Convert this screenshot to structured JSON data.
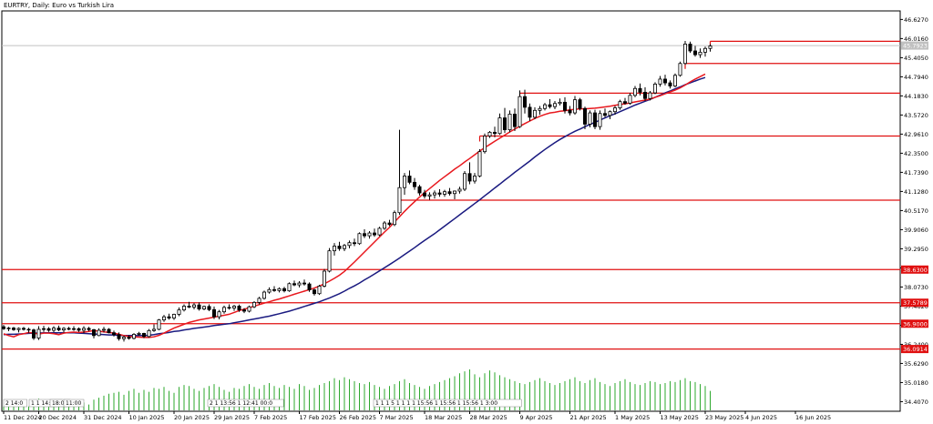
{
  "chart_data": {
    "type": "candlestick",
    "title": "EURTRY, Daily:  Euro vs Turkish Lira",
    "symbol": "EURTRY",
    "timeframe": "Daily",
    "description": "Euro vs Turkish Lira",
    "current_price_label": "45.7923",
    "ylim": [
      34.1,
      46.9
    ],
    "y_ticks": [
      "46.6270",
      "46.0160",
      "45.4050",
      "44.7940",
      "44.1830",
      "43.5720",
      "42.9610",
      "42.3500",
      "41.7390",
      "41.1280",
      "40.5170",
      "39.9060",
      "39.2950",
      "38.6840",
      "38.0730",
      "37.4620",
      "36.8510",
      "36.2400",
      "35.6290",
      "35.0180",
      "34.4070"
    ],
    "x_ticks": [
      "11 Dec 2024",
      "20 Dec 2024",
      "31 Dec 2024",
      "10 Jan 2025",
      "20 Jan 2025",
      "29 Jan 2025",
      "7 Feb 2025",
      "17 Feb 2025",
      "26 Feb 2025",
      "7 Mar 2025",
      "18 Mar 2025",
      "28 Mar 2025",
      "9 Apr 2025",
      "21 Apr 2025",
      "1 May 2025",
      "13 May 2025",
      "23 May 2025",
      "4 Jun 2025",
      "16 Jun 2025"
    ],
    "horizontal_levels": [
      {
        "price": 45.93,
        "label": "",
        "start_bar": 141
      },
      {
        "price": 45.22,
        "label": "",
        "start_bar": 136
      },
      {
        "price": 44.27,
        "label": "",
        "start_bar": 103
      },
      {
        "price": 42.9,
        "label": "",
        "start_bar": 95
      },
      {
        "price": 40.85,
        "label": "",
        "start_bar": 79
      },
      {
        "price": 38.63,
        "label": "38.6300"
      },
      {
        "price": 37.57,
        "label": "37.5789"
      },
      {
        "price": 36.9,
        "label": "36.9000"
      },
      {
        "price": 36.09,
        "label": "36.0914"
      }
    ],
    "ma_fast": {
      "color": "#e8181e",
      "values": [
        36.58,
        36.52,
        36.48,
        36.55,
        36.58,
        36.62,
        36.6,
        36.57,
        36.6,
        36.6,
        36.58,
        36.55,
        36.6,
        36.62,
        36.63,
        36.62,
        36.63,
        36.65,
        36.68,
        36.66,
        36.64,
        36.62,
        36.6,
        36.56,
        36.52,
        36.49,
        36.48,
        36.47,
        36.46,
        36.46,
        36.48,
        36.53,
        36.6,
        36.68,
        36.76,
        36.82,
        36.88,
        36.94,
        36.98,
        37.02,
        37.05,
        37.08,
        37.11,
        37.14,
        37.17,
        37.2,
        37.26,
        37.32,
        37.36,
        37.41,
        37.46,
        37.51,
        37.56,
        37.6,
        37.65,
        37.69,
        37.74,
        37.79,
        37.84,
        37.89,
        37.94,
        37.99,
        38.04,
        38.1,
        38.18,
        38.26,
        38.35,
        38.45,
        38.57,
        38.72,
        38.87,
        39.03,
        39.19,
        39.35,
        39.51,
        39.67,
        39.83,
        39.98,
        40.15,
        40.32,
        40.49,
        40.65,
        40.8,
        40.95,
        41.09,
        41.22,
        41.35,
        41.48,
        41.6,
        41.72,
        41.84,
        41.95,
        42.07,
        42.18,
        42.3,
        42.42,
        42.53,
        42.63,
        42.73,
        42.83,
        42.93,
        43.03,
        43.12,
        43.21,
        43.3,
        43.38,
        43.46,
        43.53,
        43.59,
        43.64,
        43.66,
        43.69,
        43.71,
        43.74,
        43.75,
        43.77,
        43.77,
        43.78,
        43.79,
        43.81,
        43.83,
        43.85,
        43.88,
        43.91,
        43.93,
        43.96,
        43.99,
        44.02,
        44.05,
        44.08,
        44.14,
        44.19,
        44.25,
        44.31,
        44.37,
        44.44,
        44.53,
        44.63,
        44.72,
        44.8,
        44.88
      ]
    },
    "ma_slow": {
      "color": "#1a1a80",
      "values": [
        36.55,
        36.56,
        36.56,
        36.57,
        36.58,
        36.59,
        36.6,
        36.6,
        36.61,
        36.61,
        36.61,
        36.61,
        36.61,
        36.61,
        36.61,
        36.6,
        36.59,
        36.58,
        36.57,
        36.56,
        36.55,
        36.54,
        36.54,
        36.53,
        36.52,
        36.52,
        36.52,
        36.52,
        36.52,
        36.53,
        36.55,
        36.58,
        36.6,
        36.62,
        36.65,
        36.67,
        36.7,
        36.72,
        36.75,
        36.77,
        36.79,
        36.81,
        36.84,
        36.86,
        36.88,
        36.9,
        36.93,
        36.96,
        36.99,
        37.02,
        37.05,
        37.08,
        37.11,
        37.14,
        37.18,
        37.22,
        37.26,
        37.3,
        37.35,
        37.4,
        37.45,
        37.5,
        37.55,
        37.6,
        37.66,
        37.72,
        37.79,
        37.86,
        37.94,
        38.03,
        38.11,
        38.2,
        38.3,
        38.39,
        38.49,
        38.59,
        38.69,
        38.79,
        38.89,
        39.0,
        39.11,
        39.22,
        39.33,
        39.45,
        39.56,
        39.67,
        39.78,
        39.9,
        40.02,
        40.14,
        40.26,
        40.38,
        40.5,
        40.62,
        40.74,
        40.86,
        40.99,
        41.11,
        41.24,
        41.36,
        41.49,
        41.61,
        41.74,
        41.86,
        41.98,
        42.1,
        42.23,
        42.35,
        42.47,
        42.58,
        42.69,
        42.79,
        42.88,
        42.97,
        43.05,
        43.12,
        43.2,
        43.27,
        43.34,
        43.41,
        43.48,
        43.55,
        43.61,
        43.68,
        43.75,
        43.82,
        43.89,
        43.95,
        44.01,
        44.07,
        44.14,
        44.21,
        44.28,
        44.34,
        44.41,
        44.47,
        44.54,
        44.6,
        44.66,
        44.72,
        44.77
      ]
    },
    "candles": [
      [
        36.8,
        36.86,
        36.7,
        36.74
      ],
      [
        36.74,
        36.8,
        36.66,
        36.76
      ],
      [
        36.76,
        36.8,
        36.67,
        36.71
      ],
      [
        36.71,
        36.78,
        36.62,
        36.75
      ],
      [
        36.75,
        36.8,
        36.68,
        36.72
      ],
      [
        36.72,
        36.77,
        36.61,
        36.7
      ],
      [
        36.7,
        36.74,
        36.38,
        36.44
      ],
      [
        36.44,
        36.82,
        36.38,
        36.72
      ],
      [
        36.72,
        36.83,
        36.64,
        36.74
      ],
      [
        36.74,
        36.79,
        36.64,
        36.69
      ],
      [
        36.69,
        36.82,
        36.63,
        36.76
      ],
      [
        36.76,
        36.84,
        36.66,
        36.7
      ],
      [
        36.7,
        36.79,
        36.62,
        36.75
      ],
      [
        36.75,
        36.8,
        36.69,
        36.72
      ],
      [
        36.72,
        36.82,
        36.67,
        36.74
      ],
      [
        36.74,
        36.78,
        36.64,
        36.69
      ],
      [
        36.69,
        36.82,
        36.6,
        36.75
      ],
      [
        36.75,
        36.8,
        36.66,
        36.71
      ],
      [
        36.71,
        36.73,
        36.43,
        36.52
      ],
      [
        36.52,
        36.75,
        36.5,
        36.69
      ],
      [
        36.69,
        36.8,
        36.62,
        36.72
      ],
      [
        36.72,
        36.76,
        36.59,
        36.61
      ],
      [
        36.61,
        36.68,
        36.49,
        36.55
      ],
      [
        36.55,
        36.62,
        36.36,
        36.42
      ],
      [
        36.42,
        36.52,
        36.33,
        36.47
      ],
      [
        36.47,
        36.53,
        36.39,
        36.43
      ],
      [
        36.43,
        36.6,
        36.4,
        36.56
      ],
      [
        36.56,
        36.64,
        36.51,
        36.59
      ],
      [
        36.59,
        36.61,
        36.44,
        36.49
      ],
      [
        36.49,
        36.73,
        36.46,
        36.68
      ],
      [
        36.68,
        36.88,
        36.64,
        36.72
      ],
      [
        36.72,
        37.05,
        36.69,
        37.02
      ],
      [
        37.02,
        37.18,
        36.96,
        37.12
      ],
      [
        37.12,
        37.22,
        37.03,
        37.08
      ],
      [
        37.08,
        37.22,
        37.02,
        37.2
      ],
      [
        37.2,
        37.42,
        37.14,
        37.34
      ],
      [
        37.34,
        37.52,
        37.29,
        37.46
      ],
      [
        37.46,
        37.6,
        37.4,
        37.43
      ],
      [
        37.43,
        37.56,
        37.36,
        37.5
      ],
      [
        37.5,
        37.58,
        37.32,
        37.37
      ],
      [
        37.37,
        37.48,
        37.33,
        37.45
      ],
      [
        37.45,
        37.52,
        37.3,
        37.35
      ],
      [
        37.35,
        37.45,
        37.05,
        37.12
      ],
      [
        37.12,
        37.34,
        37.04,
        37.28
      ],
      [
        37.28,
        37.48,
        37.22,
        37.42
      ],
      [
        37.42,
        37.52,
        37.35,
        37.4
      ],
      [
        37.4,
        37.5,
        37.31,
        37.46
      ],
      [
        37.46,
        37.51,
        37.28,
        37.34
      ],
      [
        37.34,
        37.4,
        37.24,
        37.3
      ],
      [
        37.3,
        37.48,
        37.26,
        37.44
      ],
      [
        37.44,
        37.62,
        37.4,
        37.58
      ],
      [
        37.58,
        37.76,
        37.52,
        37.71
      ],
      [
        37.71,
        37.96,
        37.67,
        37.91
      ],
      [
        37.91,
        38.06,
        37.86,
        37.99
      ],
      [
        37.99,
        38.1,
        37.92,
        37.96
      ],
      [
        37.96,
        38.06,
        37.9,
        38.02
      ],
      [
        38.02,
        38.08,
        37.9,
        37.95
      ],
      [
        37.95,
        38.22,
        37.92,
        38.18
      ],
      [
        38.18,
        38.28,
        38.1,
        38.14
      ],
      [
        38.14,
        38.26,
        38.06,
        38.2
      ],
      [
        38.2,
        38.31,
        38.12,
        38.17
      ],
      [
        38.17,
        38.22,
        37.92,
        37.98
      ],
      [
        37.98,
        38.02,
        37.8,
        37.86
      ],
      [
        37.86,
        38.14,
        37.82,
        38.1
      ],
      [
        38.1,
        38.65,
        38.06,
        38.58
      ],
      [
        38.58,
        39.32,
        38.54,
        39.23
      ],
      [
        39.23,
        39.48,
        39.08,
        39.38
      ],
      [
        39.38,
        39.52,
        39.23,
        39.3
      ],
      [
        39.3,
        39.45,
        39.22,
        39.4
      ],
      [
        39.4,
        39.56,
        39.31,
        39.49
      ],
      [
        39.49,
        39.62,
        39.38,
        39.46
      ],
      [
        39.46,
        39.82,
        39.42,
        39.78
      ],
      [
        39.78,
        39.92,
        39.64,
        39.71
      ],
      [
        39.71,
        39.86,
        39.62,
        39.8
      ],
      [
        39.8,
        39.94,
        39.68,
        39.74
      ],
      [
        39.74,
        40.0,
        39.7,
        39.95
      ],
      [
        39.95,
        40.18,
        39.9,
        40.12
      ],
      [
        40.12,
        40.22,
        40.02,
        40.07
      ],
      [
        40.07,
        40.52,
        40.02,
        40.45
      ],
      [
        40.45,
        43.1,
        40.38,
        41.25
      ],
      [
        41.25,
        41.72,
        41.02,
        41.62
      ],
      [
        41.62,
        41.8,
        41.36,
        41.42
      ],
      [
        41.42,
        41.56,
        41.18,
        41.28
      ],
      [
        41.28,
        41.34,
        41.0,
        41.08
      ],
      [
        41.08,
        41.18,
        40.9,
        40.98
      ],
      [
        40.98,
        41.1,
        40.86,
        41.02
      ],
      [
        41.02,
        41.16,
        40.9,
        41.08
      ],
      [
        41.08,
        41.2,
        40.96,
        41.04
      ],
      [
        41.04,
        41.18,
        40.96,
        41.12
      ],
      [
        41.12,
        41.24,
        41.0,
        41.06
      ],
      [
        41.06,
        41.16,
        40.88,
        41.14
      ],
      [
        41.14,
        41.28,
        41.06,
        41.2
      ],
      [
        41.2,
        41.78,
        41.14,
        41.7
      ],
      [
        41.7,
        42.06,
        41.36,
        41.46
      ],
      [
        41.46,
        41.72,
        41.38,
        41.62
      ],
      [
        41.62,
        42.48,
        41.58,
        42.4
      ],
      [
        42.4,
        42.98,
        42.34,
        42.9
      ],
      [
        42.9,
        43.06,
        42.84,
        43.02
      ],
      [
        43.02,
        43.2,
        42.86,
        42.98
      ],
      [
        42.98,
        43.62,
        42.94,
        43.48
      ],
      [
        43.48,
        43.8,
        43.0,
        43.1
      ],
      [
        43.1,
        43.72,
        43.02,
        43.6
      ],
      [
        43.6,
        43.78,
        43.06,
        43.2
      ],
      [
        43.2,
        44.36,
        43.16,
        44.16
      ],
      [
        44.16,
        44.38,
        43.62,
        43.82
      ],
      [
        43.82,
        43.94,
        43.38,
        43.5
      ],
      [
        43.5,
        43.82,
        43.44,
        43.72
      ],
      [
        43.72,
        43.86,
        43.58,
        43.78
      ],
      [
        43.78,
        43.96,
        43.72,
        43.9
      ],
      [
        43.9,
        44.08,
        43.78,
        43.84
      ],
      [
        43.84,
        44.02,
        43.76,
        43.94
      ],
      [
        43.94,
        44.1,
        43.88,
        43.98
      ],
      [
        43.98,
        44.14,
        43.62,
        43.72
      ],
      [
        43.72,
        43.86,
        43.56,
        43.64
      ],
      [
        43.64,
        44.18,
        43.58,
        44.06
      ],
      [
        44.06,
        44.12,
        43.72,
        43.78
      ],
      [
        43.78,
        43.84,
        43.12,
        43.28
      ],
      [
        43.28,
        43.72,
        43.18,
        43.64
      ],
      [
        43.64,
        43.74,
        43.12,
        43.2
      ],
      [
        43.2,
        43.72,
        43.1,
        43.62
      ],
      [
        43.62,
        43.78,
        43.5,
        43.56
      ],
      [
        43.56,
        43.72,
        43.44,
        43.68
      ],
      [
        43.68,
        43.86,
        43.58,
        43.8
      ],
      [
        43.8,
        44.06,
        43.74,
        44.0
      ],
      [
        44.0,
        44.12,
        43.9,
        43.95
      ],
      [
        43.95,
        44.28,
        43.9,
        44.2
      ],
      [
        44.2,
        44.5,
        44.14,
        44.42
      ],
      [
        44.42,
        44.58,
        44.2,
        44.3
      ],
      [
        44.3,
        44.46,
        44.02,
        44.1
      ],
      [
        44.1,
        44.34,
        44.04,
        44.28
      ],
      [
        44.28,
        44.62,
        44.24,
        44.56
      ],
      [
        44.56,
        44.82,
        44.48,
        44.72
      ],
      [
        44.72,
        44.86,
        44.52,
        44.6
      ],
      [
        44.6,
        44.68,
        44.42,
        44.5
      ],
      [
        44.5,
        44.9,
        44.46,
        44.84
      ],
      [
        44.84,
        45.28,
        44.8,
        45.22
      ],
      [
        45.22,
        45.94,
        45.18,
        45.84
      ],
      [
        45.84,
        45.92,
        45.56,
        45.62
      ],
      [
        45.62,
        45.78,
        45.44,
        45.5
      ],
      [
        45.5,
        45.7,
        45.4,
        45.58
      ],
      [
        45.58,
        45.76,
        45.44,
        45.7
      ],
      [
        45.7,
        45.84,
        45.6,
        45.78
      ]
    ],
    "volume": [
      4,
      8,
      5,
      9,
      5,
      4,
      10,
      12,
      7,
      5,
      8,
      4,
      9,
      6,
      4,
      5,
      8,
      6,
      11,
      13,
      15,
      17,
      18,
      19,
      16,
      20,
      22,
      18,
      21,
      19,
      23,
      22,
      24,
      20,
      18,
      24,
      26,
      25,
      22,
      20,
      23,
      25,
      27,
      24,
      21,
      19,
      23,
      22,
      25,
      27,
      24,
      22,
      26,
      28,
      25,
      23,
      26,
      24,
      22,
      27,
      25,
      21,
      23,
      26,
      28,
      30,
      33,
      31,
      34,
      32,
      30,
      28,
      27,
      29,
      26,
      24,
      22,
      25,
      27,
      30,
      32,
      28,
      26,
      24,
      22,
      25,
      27,
      29,
      31,
      33,
      35,
      38,
      40,
      42,
      37,
      34,
      38,
      41,
      39,
      36,
      34,
      32,
      30,
      28,
      27,
      29,
      31,
      33,
      30,
      28,
      26,
      28,
      30,
      32,
      34,
      30,
      28,
      31,
      33,
      29,
      27,
      25,
      28,
      30,
      32,
      29,
      27,
      26,
      28,
      30,
      29,
      27,
      28,
      30,
      29,
      31,
      33,
      30,
      29,
      27,
      25,
      20
    ],
    "volume_color": "#2ea82e",
    "session_labels": [
      "2 14:0",
      "1 1 14:00",
      "18:00",
      "11:00",
      "2 1 13:56 1 12:41 00:0",
      "1 1 1 5 1 1 1 1 15:56 1 15:56 1 15:56 1 3:00"
    ]
  }
}
